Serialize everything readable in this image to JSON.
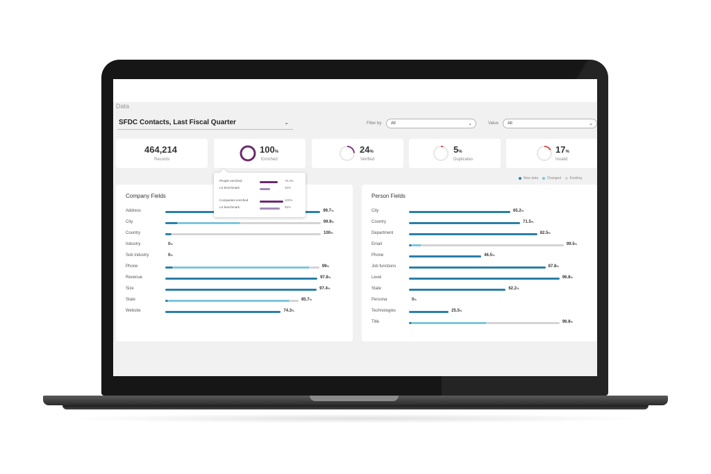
{
  "app": {
    "section_title": "Data",
    "report_select": {
      "value": "SFDC Contacts, Last Fiscal Quarter"
    },
    "filter": {
      "label": "Filter by",
      "value": "All"
    },
    "value_filter": {
      "label": "Value",
      "value": "All"
    }
  },
  "stats": [
    {
      "value": "464,214",
      "unit": "",
      "label": "Records"
    },
    {
      "value": "100",
      "unit": "%",
      "label": "Enriched",
      "percent": 100
    },
    {
      "value": "24",
      "unit": "%",
      "label": "Verified",
      "percent": 24
    },
    {
      "value": "5",
      "unit": "%",
      "label": "Duplicates",
      "percent": 5
    },
    {
      "value": "17",
      "unit": "%",
      "label": "Invalid",
      "percent": 17
    }
  ],
  "tooltip": {
    "rows": [
      {
        "label": "People enriched",
        "value": "76.3%",
        "percent": 76.3,
        "kind": "actual"
      },
      {
        "label": "LS benchmark",
        "value": "45%",
        "percent": 45,
        "kind": "benchmark"
      },
      {
        "label": "Companies enriched",
        "value": "100%",
        "percent": 100,
        "kind": "actual"
      },
      {
        "label": "LS benchmark",
        "value": "85%",
        "percent": 85,
        "kind": "benchmark"
      }
    ]
  },
  "legend": [
    {
      "label": "New data",
      "color": "#2a7fa8"
    },
    {
      "label": "Changed",
      "color": "#7cc5dc"
    },
    {
      "label": "Existing",
      "color": "#d4d4d4"
    }
  ],
  "company_fields": {
    "title": "Company Fields",
    "rows": [
      {
        "label": "Address",
        "value": "99.7",
        "new": 99.7,
        "changed": 0,
        "existing": 0
      },
      {
        "label": "City",
        "value": "99.9",
        "new": 8,
        "changed": 40,
        "existing": 51.9
      },
      {
        "label": "Country",
        "value": "100",
        "new": 4,
        "changed": 0,
        "existing": 96
      },
      {
        "label": "Industry",
        "value": "0",
        "new": 0,
        "changed": 0,
        "existing": 0
      },
      {
        "label": "Sub industry",
        "value": "0",
        "new": 0,
        "changed": 0,
        "existing": 0
      },
      {
        "label": "Phone",
        "value": "99",
        "new": 5,
        "changed": 88,
        "existing": 6
      },
      {
        "label": "Revenue",
        "value": "97.8",
        "new": 97.8,
        "changed": 0,
        "existing": 0
      },
      {
        "label": "Size",
        "value": "97.4",
        "new": 97.4,
        "changed": 0,
        "existing": 0
      },
      {
        "label": "State",
        "value": "85.7",
        "new": 2,
        "changed": 78,
        "existing": 5.7
      },
      {
        "label": "Website",
        "value": "74.3",
        "new": 74.3,
        "changed": 0,
        "existing": 0
      }
    ]
  },
  "person_fields": {
    "title": "Person Fields",
    "rows": [
      {
        "label": "City",
        "value": "65.2",
        "new": 65.2,
        "changed": 0,
        "existing": 0
      },
      {
        "label": "Country",
        "value": "71.5",
        "new": 71.5,
        "changed": 0,
        "existing": 0
      },
      {
        "label": "Department",
        "value": "82.5",
        "new": 82.5,
        "changed": 0,
        "existing": 0
      },
      {
        "label": "Email",
        "value": "99.5",
        "new": 2,
        "changed": 6,
        "existing": 91.5
      },
      {
        "label": "Phone",
        "value": "46.5",
        "new": 46.5,
        "changed": 0,
        "existing": 0
      },
      {
        "label": "Job functions",
        "value": "87.8",
        "new": 87.8,
        "changed": 0,
        "existing": 0
      },
      {
        "label": "Level",
        "value": "96.8",
        "new": 96.8,
        "changed": 0,
        "existing": 0
      },
      {
        "label": "State",
        "value": "62.2",
        "new": 62.2,
        "changed": 0,
        "existing": 0
      },
      {
        "label": "Persona",
        "value": "0",
        "new": 0,
        "changed": 0,
        "existing": 0
      },
      {
        "label": "Technologies",
        "value": "25.5",
        "new": 25.5,
        "changed": 0,
        "existing": 0
      },
      {
        "label": "Title",
        "value": "96.8",
        "new": 2,
        "changed": 48,
        "existing": 46.8
      }
    ]
  },
  "colors": {
    "new": "#2a7fa8",
    "changed": "#7cc5dc",
    "existing": "#d4d4d4",
    "ring_enriched": "#6b2a6e",
    "ring_verified": "#7b3a7e",
    "ring_duplicates": "#d94a4a",
    "ring_invalid": "#d94a4a",
    "ring_track": "#e6e6e6",
    "tooltip_actual": "#6b2a6e",
    "tooltip_benchmark": "#a68ab8"
  }
}
